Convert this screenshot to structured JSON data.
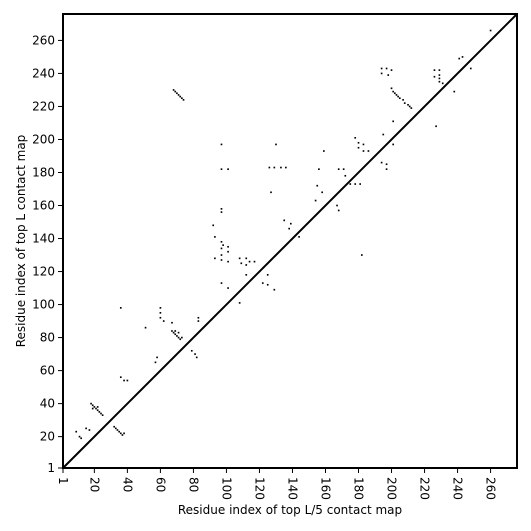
{
  "chart_data": {
    "type": "scatter",
    "title": "",
    "xlabel": "Residue index of top L/5 contact map",
    "ylabel": "Residue index of top L contact map",
    "xlim": [
      1,
      276
    ],
    "ylim": [
      1,
      276
    ],
    "xticks": [
      1,
      20,
      40,
      60,
      80,
      100,
      120,
      140,
      160,
      180,
      200,
      220,
      240,
      260
    ],
    "yticks": [
      1,
      20,
      40,
      60,
      80,
      100,
      120,
      140,
      160,
      180,
      200,
      220,
      240,
      260
    ],
    "xtick_labels": [
      "1",
      "20",
      "40",
      "60",
      "80",
      "100",
      "120",
      "140",
      "160",
      "180",
      "200",
      "220",
      "240",
      "260"
    ],
    "ytick_labels": [
      "1",
      "20",
      "40",
      "60",
      "80",
      "100",
      "120",
      "140",
      "160",
      "180",
      "200",
      "220",
      "240",
      "260"
    ],
    "grid": false,
    "diagonal": true,
    "marker_color": "#000000",
    "series": [
      {
        "region": "upper-left",
        "points": [
          [
            68,
            230
          ],
          [
            69,
            229
          ],
          [
            70,
            228
          ],
          [
            71,
            227
          ],
          [
            72,
            226
          ],
          [
            73,
            225
          ],
          [
            74,
            224
          ],
          [
            97,
            197
          ],
          [
            93,
            141
          ],
          [
            97,
            138
          ],
          [
            98,
            136
          ],
          [
            101,
            135
          ],
          [
            97,
            134
          ],
          [
            101,
            132
          ],
          [
            97,
            130
          ],
          [
            93,
            128
          ],
          [
            97,
            127
          ],
          [
            101,
            126
          ],
          [
            97,
            113
          ],
          [
            101,
            110
          ],
          [
            97,
            182
          ],
          [
            101,
            182
          ],
          [
            97,
            158
          ],
          [
            97,
            156
          ],
          [
            92,
            148
          ],
          [
            108,
            128
          ],
          [
            112,
            128
          ],
          [
            114,
            126
          ],
          [
            109,
            125
          ],
          [
            112,
            124
          ],
          [
            117,
            126
          ],
          [
            112,
            118
          ],
          [
            125,
            118
          ],
          [
            122,
            113
          ],
          [
            125,
            112
          ],
          [
            129,
            109
          ],
          [
            108,
            101
          ],
          [
            126,
            183
          ],
          [
            129,
            183
          ],
          [
            133,
            183
          ],
          [
            136,
            183
          ],
          [
            130,
            197
          ],
          [
            127,
            168
          ],
          [
            135,
            151
          ],
          [
            139,
            149
          ],
          [
            138,
            146
          ],
          [
            144,
            141
          ],
          [
            159,
            193
          ],
          [
            156,
            182
          ],
          [
            155,
            172
          ],
          [
            158,
            168
          ],
          [
            154,
            163
          ],
          [
            167,
            160
          ],
          [
            168,
            182
          ],
          [
            171,
            182
          ],
          [
            172,
            178
          ],
          [
            175,
            173
          ],
          [
            168,
            157
          ],
          [
            178,
            201
          ],
          [
            180,
            198
          ],
          [
            183,
            197
          ],
          [
            180,
            195
          ],
          [
            183,
            193
          ],
          [
            186,
            193
          ],
          [
            178,
            173
          ],
          [
            181,
            173
          ],
          [
            182,
            130
          ],
          [
            194,
            243
          ],
          [
            197,
            243
          ],
          [
            200,
            242
          ],
          [
            194,
            240
          ],
          [
            198,
            239
          ],
          [
            200,
            231
          ],
          [
            201,
            229
          ],
          [
            202,
            228
          ],
          [
            203,
            227
          ],
          [
            204,
            226
          ],
          [
            205,
            225
          ],
          [
            207,
            224
          ],
          [
            208,
            222
          ],
          [
            210,
            221
          ],
          [
            211,
            220
          ],
          [
            212,
            219
          ],
          [
            195,
            203
          ],
          [
            201,
            211
          ],
          [
            194,
            186
          ],
          [
            197,
            185
          ],
          [
            197,
            182
          ],
          [
            201,
            197
          ],
          [
            226,
            242
          ],
          [
            229,
            242
          ],
          [
            229,
            239
          ],
          [
            226,
            238
          ],
          [
            229,
            237
          ],
          [
            229,
            235
          ],
          [
            231,
            234
          ],
          [
            238,
            229
          ],
          [
            241,
            249
          ],
          [
            243,
            250
          ],
          [
            248,
            243
          ],
          [
            227,
            208
          ],
          [
            260,
            266
          ]
        ]
      },
      {
        "region": "lower-right",
        "points": [
          [
            9,
            23
          ],
          [
            11,
            20
          ],
          [
            12,
            19
          ],
          [
            15,
            25
          ],
          [
            17,
            24
          ],
          [
            18,
            40
          ],
          [
            19,
            39
          ],
          [
            20,
            38
          ],
          [
            21,
            37
          ],
          [
            22,
            36
          ],
          [
            23,
            35
          ],
          [
            24,
            34
          ],
          [
            25,
            33
          ],
          [
            19,
            37
          ],
          [
            22,
            38
          ],
          [
            32,
            26
          ],
          [
            33,
            25
          ],
          [
            34,
            24
          ],
          [
            35,
            23
          ],
          [
            36,
            22
          ],
          [
            37,
            21
          ],
          [
            38,
            22
          ],
          [
            36,
            98
          ],
          [
            36,
            56
          ],
          [
            38,
            54
          ],
          [
            40,
            54
          ],
          [
            51,
            86
          ],
          [
            57,
            65
          ],
          [
            58,
            68
          ],
          [
            60,
            98
          ],
          [
            60,
            95
          ],
          [
            60,
            92
          ],
          [
            62,
            90
          ],
          [
            67,
            89
          ],
          [
            67,
            84
          ],
          [
            68,
            83
          ],
          [
            69,
            82
          ],
          [
            70,
            81
          ],
          [
            71,
            80
          ],
          [
            72,
            79
          ],
          [
            73,
            80
          ],
          [
            69,
            84
          ],
          [
            71,
            83
          ],
          [
            79,
            72
          ],
          [
            81,
            70
          ],
          [
            82,
            68
          ],
          [
            83,
            90
          ],
          [
            83,
            92
          ]
        ]
      }
    ]
  }
}
